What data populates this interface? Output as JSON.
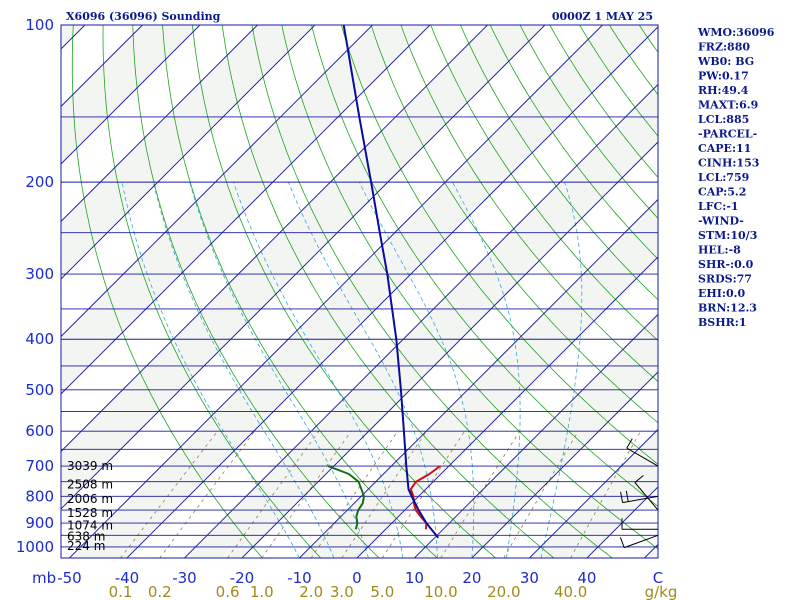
{
  "header": {
    "station": "X6096 (36096) Sounding",
    "time": "0000Z  1 MAY 25"
  },
  "indices": [
    "WMO:36096",
    "FRZ:880",
    "WB0: BG",
    "PW:0.17",
    "RH:49.4",
    "MAXT:6.9",
    "LCL:885",
    "-PARCEL-",
    "CAPE:11",
    "CINH:153",
    "LCL:759",
    "CAP:5.2",
    "LFC:-1",
    "-WIND-",
    "STM:10/3",
    "HEL:-8",
    "SHR-:0.0",
    "SRDS:77",
    "EHI:0.0",
    "BRN:12.3",
    "BSHR:1"
  ],
  "chart_data": {
    "type": "line",
    "diagram": "skew-T log-p",
    "x_unit_label": "C",
    "y_unit_label": "mb",
    "pressure_ticks": [
      "100",
      "200",
      "300",
      "400",
      "500",
      "600",
      "700",
      "800",
      "900",
      "1000"
    ],
    "temp_ticks": [
      "-50",
      "-40",
      "-30",
      "-20",
      "-10",
      "0",
      "10",
      "20",
      "30",
      "40"
    ],
    "mixing_ratio_ticks": [
      "0.1",
      "0.2",
      "0.6",
      "1.0",
      "2.0",
      "3.0",
      "5.0",
      "10.0",
      "20.0",
      "40.0"
    ],
    "mixing_ratio_unit": "g/kg",
    "height_labels": [
      {
        "p": 700,
        "label": "3039 m"
      },
      {
        "p": 760,
        "label": "2508 m"
      },
      {
        "p": 810,
        "label": "2006 m"
      },
      {
        "p": 860,
        "label": "1528 m"
      },
      {
        "p": 910,
        "label": "1074 m"
      },
      {
        "p": 955,
        "label": "638 m"
      },
      {
        "p": 995,
        "label": "224 m"
      }
    ],
    "series": [
      {
        "name": "",
        "kind": "temperature",
        "color": "#d01010",
        "points": [
          [
            925,
            7.0
          ],
          [
            900,
            6.0
          ],
          [
            875,
            3.9
          ],
          [
            850,
            1.9
          ],
          [
            825,
            0.4
          ],
          [
            800,
            -0.9
          ],
          [
            775,
            -2.6
          ],
          [
            750,
            -3.0
          ],
          [
            725,
            -2.0
          ],
          [
            700,
            -1.5
          ]
        ]
      },
      {
        "name": "",
        "kind": "dewpoint",
        "color": "#157015",
        "points": [
          [
            925,
            -5.2
          ],
          [
            900,
            -6.0
          ],
          [
            875,
            -7.3
          ],
          [
            850,
            -8.1
          ],
          [
            825,
            -8.5
          ],
          [
            800,
            -9.5
          ],
          [
            775,
            -11.2
          ],
          [
            750,
            -13.0
          ],
          [
            725,
            -16.0
          ],
          [
            700,
            -21.0
          ]
        ]
      },
      {
        "name": "",
        "kind": "parcel",
        "color": "#0a0aa0",
        "points": [
          [
            960,
            10.6
          ],
          [
            900,
            6.0
          ],
          [
            850,
            2.4
          ],
          [
            800,
            -1.2
          ],
          [
            775,
            -3.0
          ],
          [
            700,
            -7.4
          ],
          [
            600,
            -13.9
          ],
          [
            500,
            -21.6
          ],
          [
            400,
            -31.2
          ],
          [
            300,
            -44.1
          ],
          [
            250,
            -52.6
          ],
          [
            200,
            -62.9
          ],
          [
            150,
            -76.3
          ],
          [
            100,
            -95.0
          ]
        ]
      }
    ],
    "wind_barbs": [
      {
        "p": 700,
        "dir": 300,
        "speed_kt": 10
      },
      {
        "p": 800,
        "dir": 260,
        "speed_kt": 20
      },
      {
        "p": 850,
        "dir": 320,
        "speed_kt": 10
      },
      {
        "p": 925,
        "dir": 270,
        "speed_kt": 10
      },
      {
        "p": 950,
        "dir": 250,
        "speed_kt": 10
      }
    ]
  }
}
